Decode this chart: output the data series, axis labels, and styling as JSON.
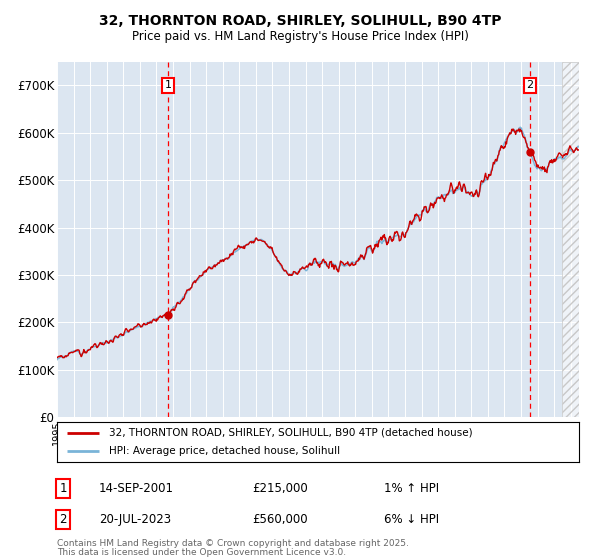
{
  "title_line1": "32, THORNTON ROAD, SHIRLEY, SOLIHULL, B90 4TP",
  "title_line2": "Price paid vs. HM Land Registry's House Price Index (HPI)",
  "ylim": [
    0,
    750000
  ],
  "yticks": [
    0,
    100000,
    200000,
    300000,
    400000,
    500000,
    600000,
    700000
  ],
  "ytick_labels": [
    "£0",
    "£100K",
    "£200K",
    "£300K",
    "£400K",
    "£500K",
    "£600K",
    "£700K"
  ],
  "background_color": "#dce6f1",
  "hpi_color": "#7ab4d8",
  "price_color": "#cc0000",
  "point1_year": 2001.71,
  "point1_price": 215000,
  "point2_year": 2023.54,
  "point2_price": 560000,
  "legend_line1": "32, THORNTON ROAD, SHIRLEY, SOLIHULL, B90 4TP (detached house)",
  "legend_line2": "HPI: Average price, detached house, Solihull",
  "footer_line1": "Contains HM Land Registry data © Crown copyright and database right 2025.",
  "footer_line2": "This data is licensed under the Open Government Licence v3.0.",
  "xlim_start": 1995.0,
  "xlim_end": 2026.5,
  "future_start": 2025.5
}
